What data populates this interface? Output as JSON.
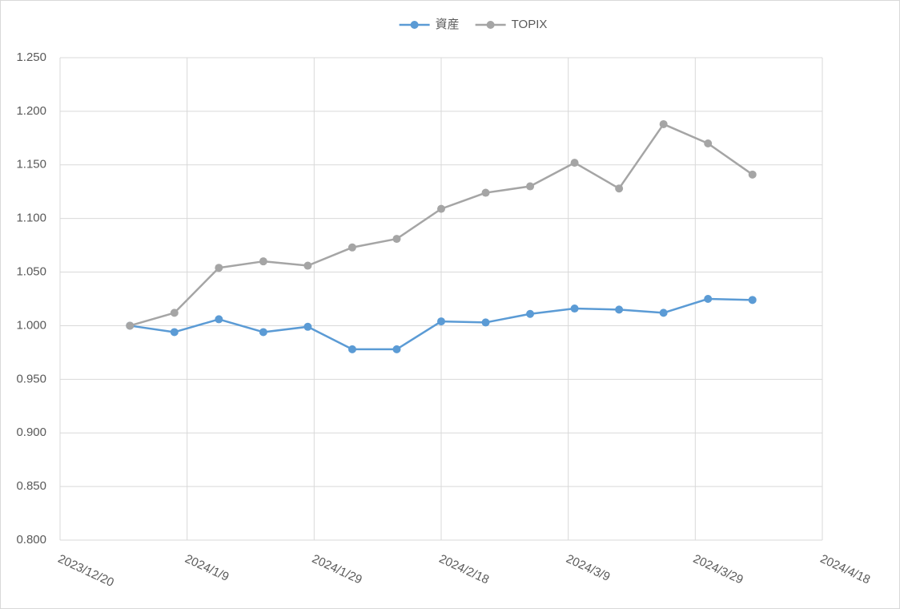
{
  "chart_data": {
    "type": "line",
    "x": [
      "2023/12/31",
      "2024/1/7",
      "2024/1/14",
      "2024/1/21",
      "2024/1/28",
      "2024/2/4",
      "2024/2/11",
      "2024/2/18",
      "2024/2/25",
      "2024/3/3",
      "2024/3/10",
      "2024/3/17",
      "2024/3/24",
      "2024/3/31",
      "2024/4/7"
    ],
    "series": [
      {
        "name": "資産",
        "color": "#5b9bd5",
        "values": [
          1.0,
          0.994,
          1.006,
          0.994,
          0.999,
          0.978,
          0.978,
          1.004,
          1.003,
          1.011,
          1.016,
          1.015,
          1.012,
          1.025,
          1.024
        ]
      },
      {
        "name": "TOPIX",
        "color": "#a5a5a5",
        "values": [
          1.0,
          1.012,
          1.054,
          1.06,
          1.056,
          1.073,
          1.081,
          1.109,
          1.124,
          1.13,
          1.152,
          1.128,
          1.188,
          1.17,
          1.141
        ]
      }
    ],
    "xlim": [
      "2023/12/20",
      "2024/4/18"
    ],
    "xticks": [
      "2023/12/20",
      "2024/1/9",
      "2024/1/29",
      "2024/2/18",
      "2024/3/9",
      "2024/3/29",
      "2024/4/18"
    ],
    "ylim": [
      0.8,
      1.25
    ],
    "yticks": [
      {
        "value": 0.8,
        "label": "0.800"
      },
      {
        "value": 0.85,
        "label": "0.850"
      },
      {
        "value": 0.9,
        "label": "0.900"
      },
      {
        "value": 0.95,
        "label": "0.950"
      },
      {
        "value": 1.0,
        "label": "1.000"
      },
      {
        "value": 1.05,
        "label": "1.050"
      },
      {
        "value": 1.1,
        "label": "1.100"
      },
      {
        "value": 1.15,
        "label": "1.150"
      },
      {
        "value": 1.2,
        "label": "1.200"
      },
      {
        "value": 1.25,
        "label": "1.250"
      }
    ],
    "grid": true,
    "legend": "top"
  }
}
